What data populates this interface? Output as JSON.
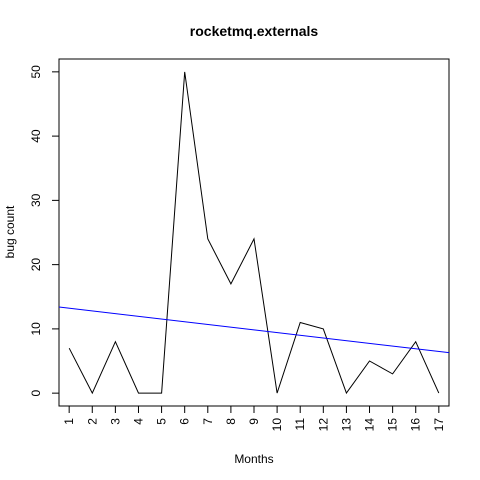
{
  "chart_data": {
    "type": "line",
    "title": "rocketmq.externals",
    "xlabel": "Months",
    "ylabel": "bug count",
    "x": [
      1,
      2,
      3,
      4,
      5,
      6,
      7,
      8,
      9,
      10,
      11,
      12,
      13,
      14,
      15,
      16,
      17
    ],
    "x_ticks": [
      "1",
      "2",
      "3",
      "4",
      "5",
      "6",
      "7",
      "8",
      "9",
      "10",
      "11",
      "12",
      "13",
      "14",
      "15",
      "16",
      "17"
    ],
    "y_ticks": [
      "0",
      "10",
      "20",
      "30",
      "40",
      "50"
    ],
    "series": [
      {
        "values": [
          7,
          0,
          8,
          0,
          0,
          50,
          24,
          17,
          24,
          0,
          11,
          10,
          0,
          5,
          3,
          8,
          0
        ],
        "color": "#000000"
      }
    ],
    "trend_line": {
      "color": "#0000ff",
      "x": [
        0.56,
        17.44
      ],
      "y": [
        13.4,
        6.3
      ]
    },
    "xlim": [
      0.56,
      17.44
    ],
    "ylim": [
      -2,
      52
    ],
    "grid": false
  }
}
